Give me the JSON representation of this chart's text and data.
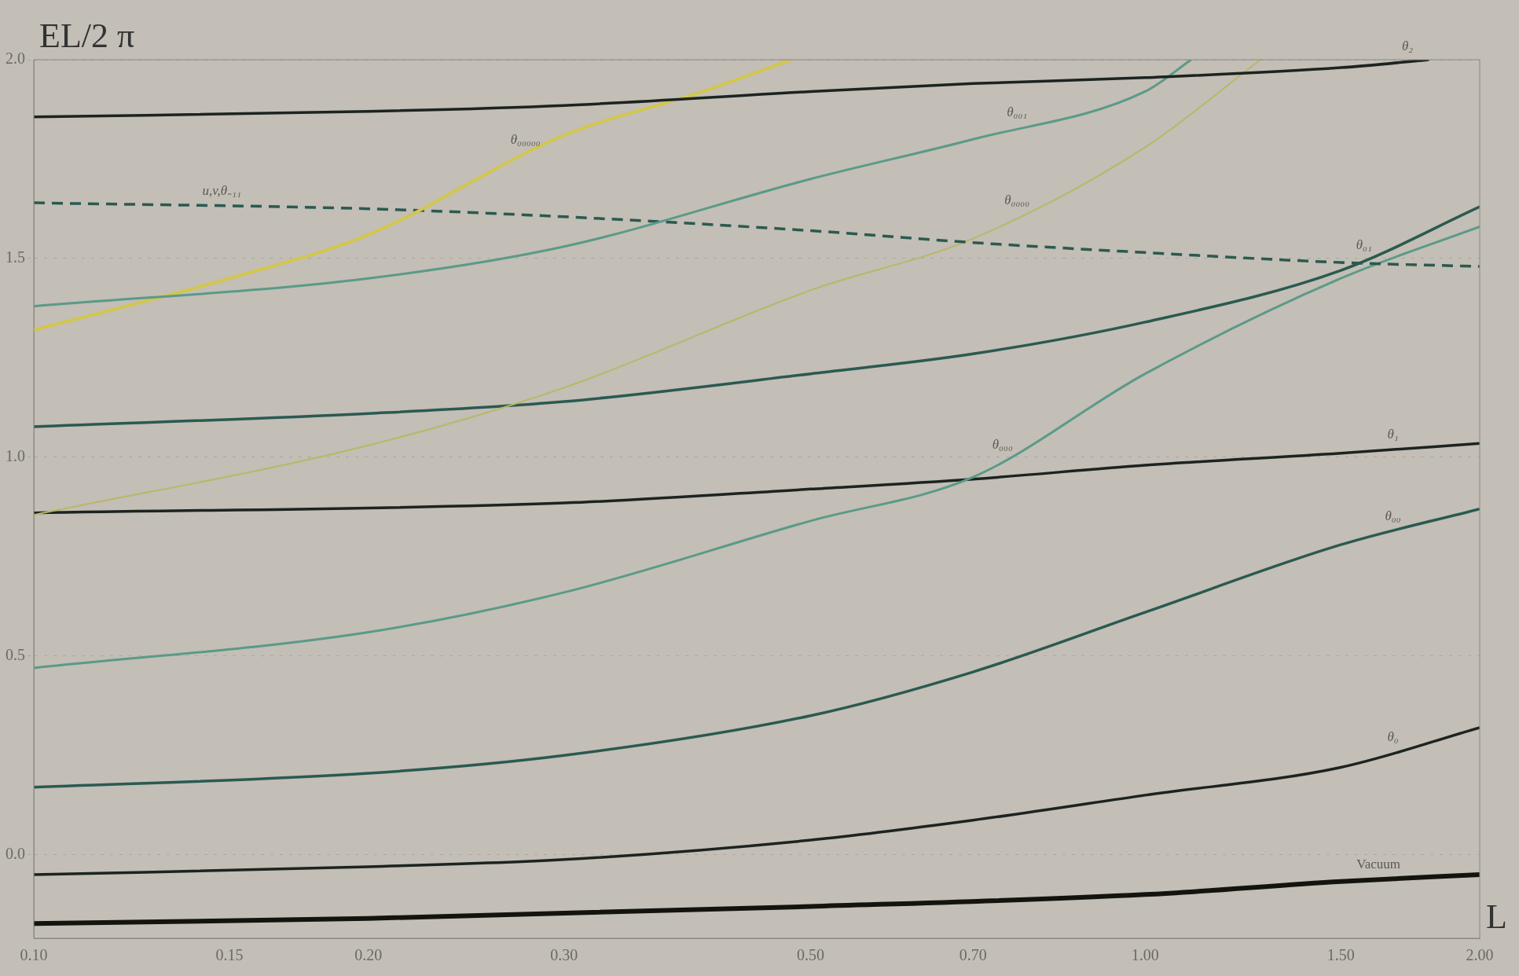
{
  "chart_data": {
    "type": "line",
    "xlabel": "L",
    "ylabel": "EL/2 π",
    "log": "x",
    "xlim": [
      0.1,
      2.0
    ],
    "ylim": [
      -0.21,
      2.0
    ],
    "xticks": [
      {
        "value": 0.1,
        "label": "0.10"
      },
      {
        "value": 0.15,
        "label": "0.15"
      },
      {
        "value": 0.2,
        "label": "0.20"
      },
      {
        "value": 0.3,
        "label": "0.30"
      },
      {
        "value": 0.5,
        "label": "0.50"
      },
      {
        "value": 0.7,
        "label": "0.70"
      },
      {
        "value": 1.0,
        "label": "1.00"
      },
      {
        "value": 1.5,
        "label": "1.50"
      },
      {
        "value": 2.0,
        "label": "2.00"
      }
    ],
    "yticks": [
      {
        "value": 0,
        "label": "0.0"
      },
      {
        "value": 0.5,
        "label": "0.5"
      },
      {
        "value": 1.0,
        "label": "1.0"
      },
      {
        "value": 1.5,
        "label": "1.5"
      },
      {
        "value": 2.0,
        "label": "2.0"
      }
    ],
    "grid": "y",
    "legend": false,
    "marker": "none",
    "series": [
      {
        "name": "θ₂",
        "color": "#1c2420",
        "x": [
          0.1,
          0.2,
          0.3,
          0.5,
          0.7,
          1.0,
          1.5,
          1.8
        ],
        "values": [
          1.856,
          1.87,
          1.885,
          1.92,
          1.94,
          1.955,
          1.98,
          2.0
        ]
      },
      {
        "name": "θ₀₀₁",
        "color": "#5a9a88",
        "x": [
          0.1,
          0.2,
          0.3,
          0.5,
          0.7,
          1.0,
          1.1
        ],
        "values": [
          1.38,
          1.45,
          1.53,
          1.7,
          1.8,
          1.92,
          2.0
        ]
      },
      {
        "name": "θ₀₀₀₀₀",
        "color": "#d2c64e",
        "x": [
          0.1,
          0.15,
          0.2,
          0.3,
          0.4,
          0.48
        ],
        "values": [
          1.32,
          1.45,
          1.56,
          1.81,
          1.92,
          2.0
        ]
      },
      {
        "name": "u,v,θ₋₁₁",
        "color": "#2a5a50",
        "line_style": "dashed",
        "x": [
          0.1,
          0.2,
          0.3,
          0.5,
          0.7,
          1.0,
          1.5,
          2.0
        ],
        "values": [
          1.64,
          1.625,
          1.605,
          1.57,
          1.54,
          1.515,
          1.49,
          1.48
        ]
      },
      {
        "name": "θ₀₀₀₀",
        "color": "#b8b866",
        "x": [
          0.1,
          0.2,
          0.3,
          0.5,
          0.7,
          1.0,
          1.27
        ],
        "values": [
          0.855,
          1.03,
          1.175,
          1.42,
          1.55,
          1.78,
          2.0
        ]
      },
      {
        "name": "θ₀₁",
        "color": "#2a5a50",
        "x": [
          0.1,
          0.2,
          0.3,
          0.5,
          0.7,
          1.0,
          1.5,
          2.0
        ],
        "values": [
          1.077,
          1.11,
          1.14,
          1.21,
          1.26,
          1.34,
          1.47,
          1.63
        ]
      },
      {
        "name": "θ₀₀₀",
        "color": "#5a9a88",
        "x": [
          0.1,
          0.2,
          0.3,
          0.5,
          0.7,
          1.0,
          1.5,
          2.0
        ],
        "values": [
          0.47,
          0.56,
          0.66,
          0.84,
          0.95,
          1.21,
          1.45,
          1.58
        ]
      },
      {
        "name": "θ₁",
        "color": "#1c2420",
        "x": [
          0.1,
          0.3,
          0.5,
          0.7,
          1.0,
          1.5,
          2.0
        ],
        "values": [
          0.86,
          0.885,
          0.92,
          0.945,
          0.98,
          1.01,
          1.035
        ]
      },
      {
        "name": "θ₀₀",
        "color": "#2a5a50",
        "x": [
          0.1,
          0.2,
          0.3,
          0.5,
          0.7,
          1.0,
          1.5,
          2.0
        ],
        "values": [
          0.17,
          0.205,
          0.25,
          0.35,
          0.46,
          0.61,
          0.78,
          0.87
        ]
      },
      {
        "name": "θ₀",
        "color": "#1c2420",
        "x": [
          0.1,
          0.2,
          0.3,
          0.5,
          0.7,
          1.0,
          1.5,
          2.0
        ],
        "values": [
          -0.05,
          -0.03,
          -0.012,
          0.037,
          0.087,
          0.15,
          0.22,
          0.32
        ]
      },
      {
        "name": "Vacuum",
        "color": "#14140f",
        "x": [
          0.1,
          0.2,
          0.5,
          1.0,
          1.5,
          2.0
        ],
        "values": [
          -0.173,
          -0.16,
          -0.13,
          -0.1,
          -0.067,
          -0.05
        ]
      }
    ]
  }
}
